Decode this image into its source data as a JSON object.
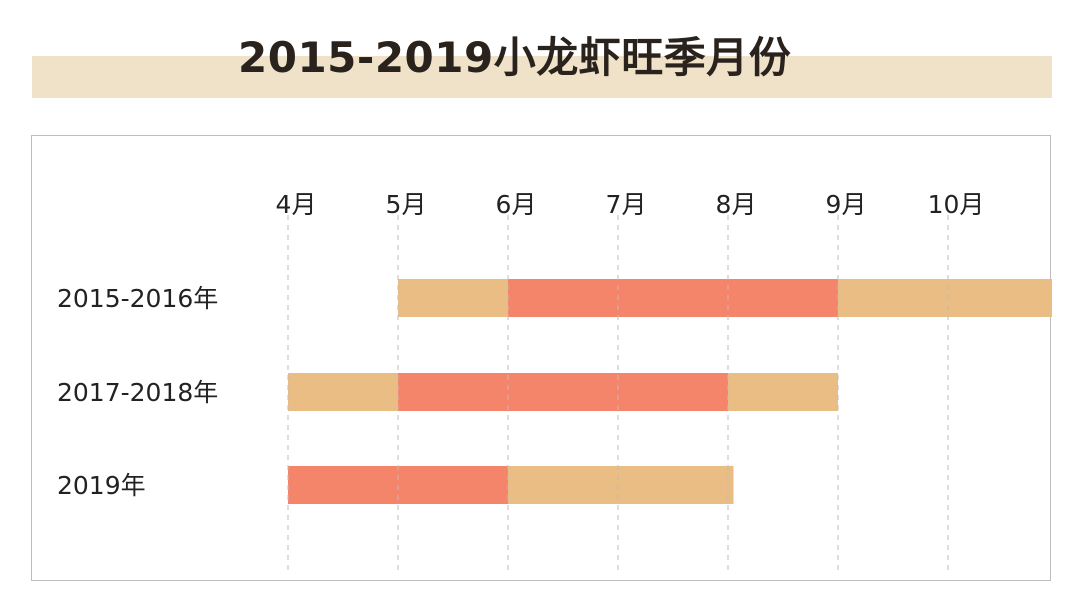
{
  "title": "2015-2019小龙虾旺季月份",
  "colors": {
    "season": "#e9bd84",
    "peak": "#f4856a",
    "title_band": "#efe2c8",
    "gridline": "#bdbdbd"
  },
  "chart_data": {
    "type": "bar",
    "orientation": "horizontal-gantt",
    "title": "2015-2019小龙虾旺季月份",
    "x_ticks": [
      "4月",
      "5月",
      "6月",
      "7月",
      "8月",
      "9月",
      "10月"
    ],
    "x_tick_values": [
      4,
      5,
      6,
      7,
      8,
      9,
      10
    ],
    "xlim": [
      4,
      11
    ],
    "grid": true,
    "categories": [
      "2015-2016年",
      "2017-2018年",
      "2019年"
    ],
    "series": [
      {
        "color": "#e9bd84",
        "ranges": [
          [
            5,
            11
          ],
          [
            4,
            9
          ],
          [
            6,
            8.05
          ]
        ]
      },
      {
        "color": "#f4856a",
        "ranges": [
          [
            6,
            9
          ],
          [
            5,
            8
          ],
          [
            4,
            6
          ]
        ]
      }
    ]
  }
}
